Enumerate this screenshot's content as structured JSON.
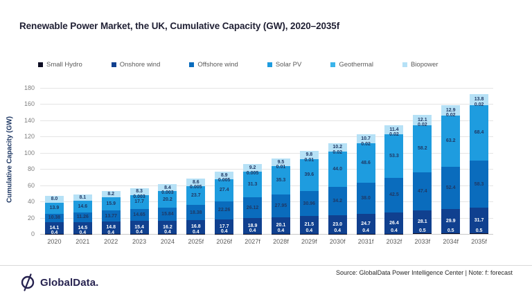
{
  "title": "Renewable Power Market, the UK, Cumulative Capacity (GW), 2020–2035f",
  "footer": {
    "logo_text": "GlobalData.",
    "source": "Source: GlobalData Power Intelligence Center | Note: f: forecast"
  },
  "chart_data": {
    "type": "bar",
    "stacked": true,
    "title": "Renewable Power Market, the UK, Cumulative Capacity (GW), 2020–2035f",
    "xlabel": "",
    "ylabel": "Cumulative Capacity (GW)",
    "ylim": [
      0,
      180
    ],
    "ytick_step": 20,
    "grid": true,
    "legend_position": "top",
    "categories": [
      "2020",
      "2021",
      "2022",
      "2023",
      "2024",
      "2025f",
      "2026f",
      "2027f",
      "2028f",
      "2029f",
      "2030f",
      "2031f",
      "2032f",
      "2033f",
      "2034f",
      "2035f"
    ],
    "series": [
      {
        "name": "Small Hydro",
        "color": "#0D0D23",
        "label_color": "#ffffff",
        "values": [
          0.4,
          0.4,
          0.4,
          0.4,
          0.4,
          0.4,
          0.4,
          0.4,
          0.4,
          0.4,
          0.4,
          0.4,
          0.4,
          0.5,
          0.5,
          0.5
        ],
        "labels": [
          "0.4",
          "0.4",
          "0.4",
          "0.4",
          "0.4",
          "0.4",
          "0.4",
          "0.4",
          "0.4",
          "0.4",
          "0.4",
          "0.4",
          "0.4",
          "0.5",
          "0.5",
          "0.5"
        ]
      },
      {
        "name": "Onshore wind",
        "color": "#10408F",
        "label_color": "#ffffff",
        "values": [
          14.1,
          14.5,
          14.8,
          15.4,
          16.2,
          16.8,
          17.7,
          18.9,
          20.1,
          21.5,
          23.0,
          24.7,
          26.4,
          28.1,
          29.9,
          31.7
        ],
        "labels": [
          "14.1",
          "14.5",
          "14.8",
          "15.4",
          "16.2",
          "16.8",
          "17.7",
          "18.9",
          "20.1",
          "21.5",
          "23.0",
          "24.7",
          "26.4",
          "28.1",
          "29.9",
          "31.7"
        ]
      },
      {
        "name": "Offshore wind",
        "color": "#0A6CBD",
        "label_color": "#1F3864",
        "values": [
          10.38,
          11.26,
          13.77,
          14.65,
          15.84,
          18.38,
          22.26,
          26.12,
          27.95,
          30.96,
          34.2,
          38.0,
          42.5,
          47.4,
          52.4,
          58.3
        ],
        "labels": [
          "10.38",
          "11.26",
          "13.77",
          "14.65",
          "15.84",
          "18.38",
          "22.26",
          "26.12",
          "27.95",
          "30.96",
          "34.2",
          "38.0",
          "42.5",
          "47.4",
          "52.4",
          "58.3"
        ]
      },
      {
        "name": "Solar PV",
        "color": "#1E9CDF",
        "label_color": "#1F3864",
        "values": [
          13.9,
          14.6,
          15.9,
          17.7,
          20.2,
          23.7,
          27.4,
          31.3,
          35.3,
          39.6,
          44.0,
          48.6,
          53.3,
          58.2,
          63.2,
          68.4
        ],
        "labels": [
          "13.9",
          "14.6",
          "15.9",
          "17.7",
          "20.2",
          "23.7",
          "27.4",
          "31.3",
          "35.3",
          "39.6",
          "44.0",
          "48.6",
          "53.3",
          "58.2",
          "63.2",
          "68.4"
        ]
      },
      {
        "name": "Geothermal",
        "color": "#3BB4EA",
        "label_color": "#1F3864",
        "values": [
          0,
          0,
          0,
          0.003,
          0.003,
          0.005,
          0.005,
          0.005,
          0.01,
          0.01,
          0.02,
          0.02,
          0.02,
          0.02,
          0.02,
          0.02
        ],
        "labels": [
          null,
          null,
          null,
          "0.003",
          "0.003",
          "0.005",
          "0.005",
          "0.005",
          "0.01",
          "0.01",
          "0.02",
          "0.02",
          "0.02",
          "0.02",
          "0.02",
          "0.02"
        ]
      },
      {
        "name": "Biopower",
        "color": "#B6E1F6",
        "label_color": "#1F3864",
        "values": [
          8.0,
          8.1,
          8.2,
          8.3,
          8.4,
          8.6,
          8.9,
          9.2,
          9.5,
          9.8,
          10.2,
          10.7,
          11.4,
          12.1,
          12.9,
          13.8
        ],
        "labels": [
          "8.0",
          "8.1",
          "8.2",
          "8.3",
          "8.4",
          "8.6",
          "8.9",
          "9.2",
          "9.5",
          "9.8",
          "10.2",
          "10.7",
          "11.4",
          "12.1",
          "12.9",
          "13.8"
        ]
      }
    ]
  }
}
